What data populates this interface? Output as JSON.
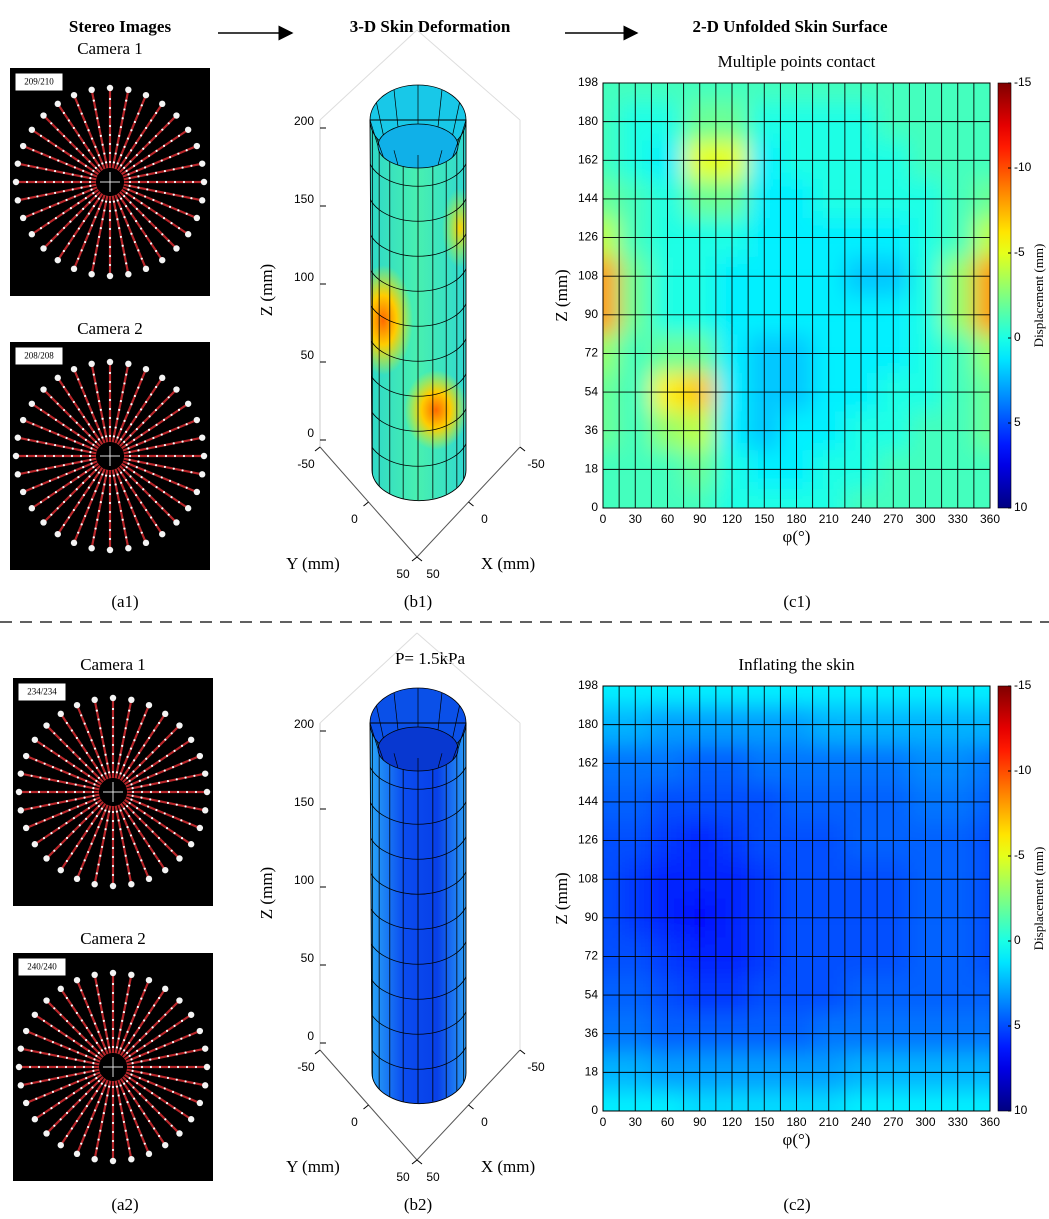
{
  "headers": [
    "Stereo Images",
    "3-D Skin Deformation",
    "2-D Unfolded Skin Surface"
  ],
  "panels": [
    {
      "cameras": [
        {
          "title": "Camera 1",
          "counter": "209/210"
        },
        {
          "title": "Camera 2",
          "counter": "208/208"
        }
      ],
      "labels": [
        "(a1)",
        "(b1)",
        "(c1)"
      ],
      "surface": {
        "zticks": [
          0,
          50,
          100,
          150,
          200
        ],
        "yticks": [
          -50,
          0,
          50
        ],
        "xticks": [
          -50,
          0,
          50
        ],
        "zlabel": "Z (mm)",
        "ylabel": "Y (mm)",
        "xlabel": "X (mm)"
      }
    },
    {
      "cameras": [
        {
          "title": "Camera 1",
          "counter": "234/234"
        },
        {
          "title": "Camera 2",
          "counter": "240/240"
        }
      ],
      "labels": [
        "(a2)",
        "(b2)",
        "(c2)"
      ],
      "surface": {
        "title": "P= 1.5kPa",
        "zticks": [
          0,
          50,
          100,
          150,
          200
        ],
        "yticks": [
          -50,
          0,
          50
        ],
        "xticks": [
          -50,
          0,
          50
        ],
        "zlabel": "Z (mm)",
        "ylabel": "Y (mm)",
        "xlabel": "X (mm)"
      }
    }
  ],
  "chart_data": [
    {
      "type": "heatmap",
      "title": "Multiple points contact",
      "xlabel": "φ(°)",
      "ylabel": "Z (mm)",
      "colorbar_label": "Displacement (mm)",
      "colormap": "jet",
      "xlim": [
        0,
        360
      ],
      "ylim": [
        0,
        198
      ],
      "clim": [
        -15,
        10
      ],
      "xticks": [
        0,
        30,
        60,
        90,
        120,
        150,
        180,
        210,
        240,
        270,
        300,
        330,
        360
      ],
      "yticks": [
        0,
        18,
        36,
        54,
        72,
        90,
        108,
        126,
        144,
        162,
        180,
        198
      ],
      "cticks": [
        -15,
        -10,
        -5,
        0,
        5,
        10
      ],
      "x": [
        0,
        30,
        60,
        90,
        120,
        150,
        180,
        210,
        240,
        270,
        300,
        330,
        360
      ],
      "y": [
        0,
        18,
        36,
        54,
        72,
        90,
        108,
        126,
        144,
        162,
        180,
        198
      ],
      "values": [
        [
          -1,
          -1,
          -1,
          -1,
          0,
          0,
          0,
          0,
          -1,
          -1,
          -1,
          -1,
          -1
        ],
        [
          -1,
          -1,
          -1,
          -2,
          0,
          1,
          1,
          0,
          0,
          -1,
          -1,
          -1,
          -1
        ],
        [
          -2,
          -1,
          -3,
          -4,
          1,
          2,
          1,
          1,
          0,
          0,
          -1,
          -1,
          -2
        ],
        [
          -2,
          -1,
          -6,
          -7,
          1,
          2,
          2,
          1,
          1,
          0,
          0,
          -1,
          -2
        ],
        [
          -3,
          -1,
          -2,
          -2,
          1,
          2,
          2,
          1,
          1,
          1,
          0,
          -1,
          -3
        ],
        [
          -8,
          -2,
          0,
          0,
          1,
          1,
          1,
          1,
          1,
          1,
          0,
          -3,
          -8
        ],
        [
          -8,
          -2,
          0,
          0,
          1,
          1,
          1,
          1,
          2,
          2,
          0,
          -3,
          -8
        ],
        [
          -4,
          -1,
          0,
          0,
          0,
          1,
          1,
          1,
          1,
          1,
          0,
          -1,
          -4
        ],
        [
          -2,
          -1,
          0,
          -2,
          -2,
          1,
          1,
          0,
          0,
          0,
          0,
          -1,
          -2
        ],
        [
          -1,
          0,
          1,
          -5,
          -5,
          1,
          0,
          0,
          0,
          0,
          -1,
          -1,
          -1
        ],
        [
          -1,
          0,
          0,
          -2,
          -2,
          0,
          0,
          0,
          0,
          -1,
          -1,
          -1,
          -1
        ],
        [
          -1,
          -1,
          -1,
          -1,
          -1,
          -1,
          -1,
          -1,
          -1,
          -1,
          -1,
          -1,
          -1
        ]
      ]
    },
    {
      "type": "heatmap",
      "title": "Inflating the skin",
      "xlabel": "φ(°)",
      "ylabel": "Z (mm)",
      "colorbar_label": "Displacement (mm)",
      "colormap": "jet",
      "xlim": [
        0,
        360
      ],
      "ylim": [
        0,
        198
      ],
      "clim": [
        -15,
        10
      ],
      "xticks": [
        0,
        30,
        60,
        90,
        120,
        150,
        180,
        210,
        240,
        270,
        300,
        330,
        360
      ],
      "yticks": [
        0,
        18,
        36,
        54,
        72,
        90,
        108,
        126,
        144,
        162,
        180,
        198
      ],
      "cticks": [
        -15,
        -10,
        -5,
        0,
        5,
        10
      ],
      "x": [
        0,
        30,
        60,
        90,
        120,
        150,
        180,
        210,
        240,
        270,
        300,
        330,
        360
      ],
      "y": [
        0,
        18,
        36,
        54,
        72,
        90,
        108,
        126,
        144,
        162,
        180,
        198
      ],
      "values": [
        [
          1,
          1,
          1,
          1.5,
          1.5,
          1.5,
          1.5,
          1.5,
          1,
          1,
          1,
          1,
          1
        ],
        [
          2.5,
          2.5,
          3,
          3,
          3,
          3,
          3,
          3,
          2.5,
          2.5,
          2.5,
          2.5,
          2.5
        ],
        [
          4,
          4,
          4.5,
          4.5,
          4.5,
          4.5,
          4.5,
          4,
          4,
          4,
          4,
          4,
          4
        ],
        [
          4.5,
          4.5,
          5,
          5.5,
          5.5,
          5,
          5,
          5,
          4.5,
          4.5,
          4.5,
          4.5,
          4.5
        ],
        [
          5,
          5,
          5.5,
          6,
          6,
          5.5,
          5,
          5,
          5,
          5,
          4.5,
          4.5,
          5
        ],
        [
          5,
          5.5,
          6,
          6.5,
          6,
          5.5,
          5,
          5,
          5,
          5,
          4.5,
          4.5,
          5
        ],
        [
          5,
          5.5,
          6,
          6,
          6,
          5.5,
          5,
          5,
          5,
          5,
          4.5,
          4.5,
          5
        ],
        [
          5,
          5,
          5.5,
          6,
          5.5,
          5,
          5,
          5,
          4.5,
          4.5,
          4.5,
          4.5,
          5
        ],
        [
          4.5,
          4.5,
          5,
          5,
          5,
          5,
          4.5,
          4.5,
          4.5,
          4.5,
          4,
          4,
          4.5
        ],
        [
          4,
          4,
          4,
          4.5,
          4.5,
          4,
          4,
          4,
          4,
          4,
          3.5,
          3.5,
          4
        ],
        [
          2.5,
          2.5,
          3,
          3,
          3,
          3,
          3,
          2.5,
          2.5,
          2.5,
          2.5,
          2.5,
          2.5
        ],
        [
          1,
          1,
          1,
          1,
          1,
          1,
          1,
          1,
          1,
          1,
          1,
          1,
          1
        ]
      ]
    }
  ]
}
